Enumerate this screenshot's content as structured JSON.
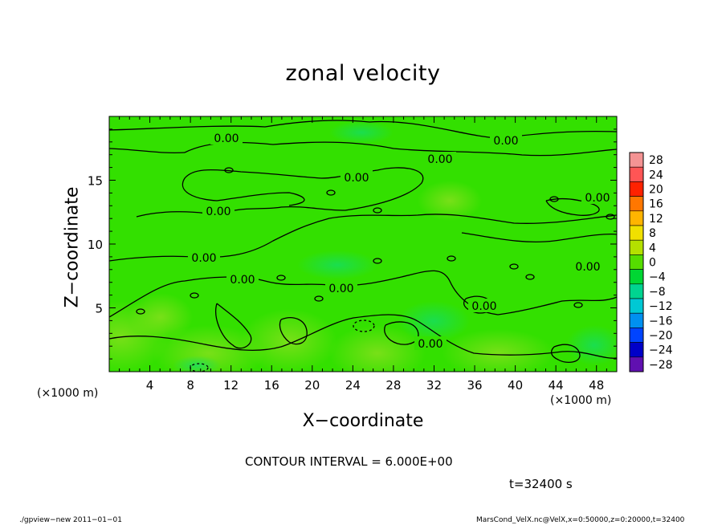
{
  "chart_data": {
    "type": "heatmap",
    "title": "zonal velocity",
    "xlabel": "X−coordinate",
    "ylabel": "Z−coordinate",
    "x_unit": "(×1000 m)",
    "xlim": [
      0,
      50
    ],
    "ylim": [
      0,
      20
    ],
    "x_ticks": [
      "4",
      "8",
      "12",
      "16",
      "20",
      "24",
      "28",
      "32",
      "36",
      "40",
      "44",
      "48"
    ],
    "y_ticks": [
      "5",
      "10",
      "15"
    ],
    "colorbar_labels": [
      "28",
      "24",
      "20",
      "16",
      "12",
      "8",
      "4",
      "0",
      "−4",
      "−8",
      "−12",
      "−16",
      "−20",
      "−24",
      "−28"
    ],
    "colorbar_colors": [
      "#f49393",
      "#ff5555",
      "#ff2200",
      "#ff7700",
      "#ffb400",
      "#f0e000",
      "#b4e000",
      "#55dd00",
      "#00d633",
      "#00d490",
      "#00c8d4",
      "#0090f0",
      "#0044ff",
      "#0000c8",
      "#6010b0"
    ],
    "field_color": "#33e000",
    "contour_interval": "CONTOUR INTERVAL = 6.000E+00",
    "contour_labels": [
      "0.00",
      "0.00",
      "0.00",
      "0.00",
      "0.00",
      "0.00",
      "0.00",
      "0.00",
      "0.00",
      "0.00",
      "0.00",
      "0.00"
    ],
    "time": "t=32400 s"
  },
  "footer": {
    "left": "./gpview−new  2011−01−01",
    "right": "MarsCond_VelX.nc@VelX,x=0:50000,z=0:20000,t=32400"
  }
}
